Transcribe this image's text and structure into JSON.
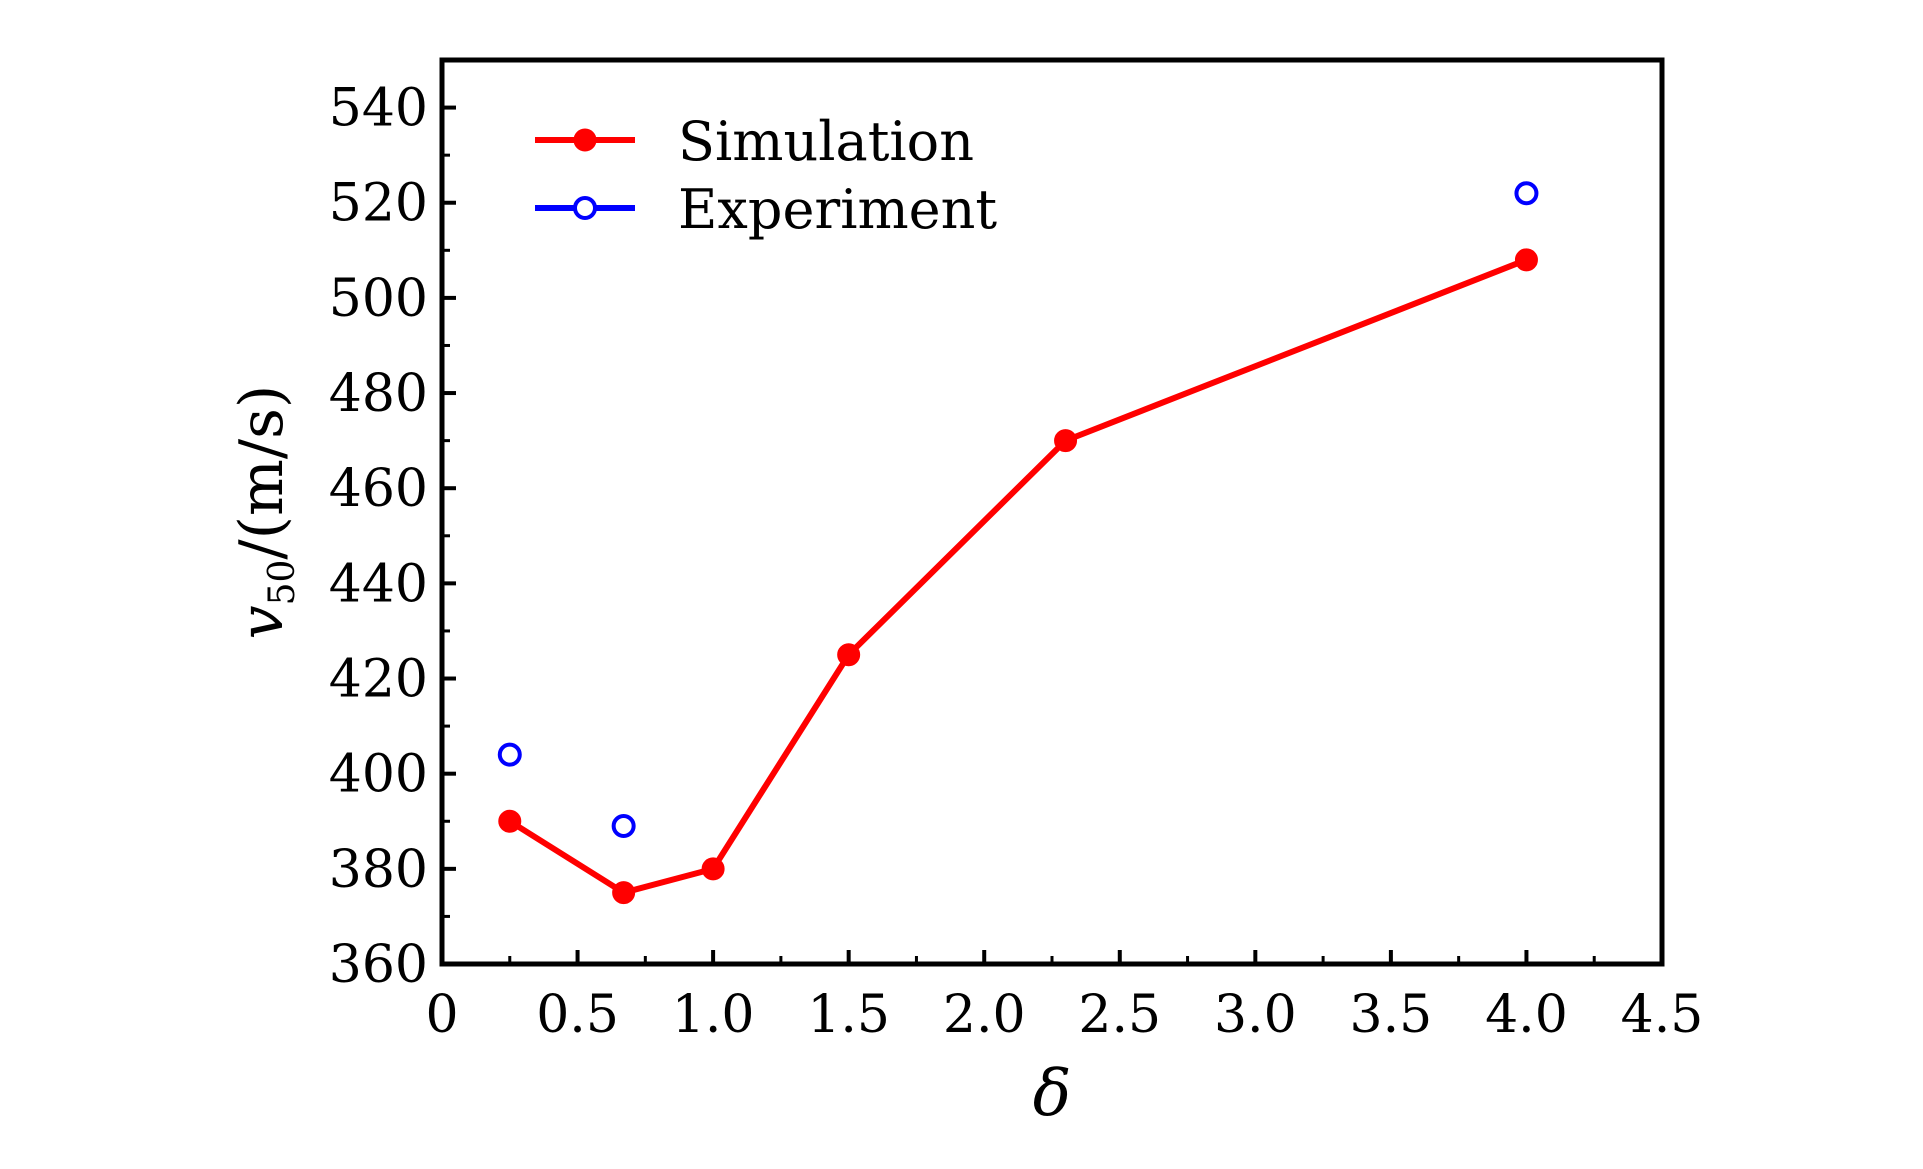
{
  "chart_data": {
    "type": "line",
    "title": "",
    "xlabel": "δ",
    "ylabel": {
      "main": "v",
      "subscript": "50",
      "unit": "/(m/s)"
    },
    "xlim": [
      0,
      4.5
    ],
    "ylim": [
      360,
      550
    ],
    "x_ticks": [
      {
        "value": 0,
        "label": "0"
      },
      {
        "value": 0.5,
        "label": "0.5"
      },
      {
        "value": 1.0,
        "label": "1.0"
      },
      {
        "value": 1.5,
        "label": "1.5"
      },
      {
        "value": 2.0,
        "label": "2.0"
      },
      {
        "value": 2.5,
        "label": "2.5"
      },
      {
        "value": 3.0,
        "label": "3.0"
      },
      {
        "value": 3.5,
        "label": "3.5"
      },
      {
        "value": 4.0,
        "label": "4.0"
      },
      {
        "value": 4.5,
        "label": "4.5"
      }
    ],
    "y_ticks": [
      {
        "value": 360,
        "label": "360"
      },
      {
        "value": 380,
        "label": "380"
      },
      {
        "value": 400,
        "label": "400"
      },
      {
        "value": 420,
        "label": "420"
      },
      {
        "value": 440,
        "label": "440"
      },
      {
        "value": 460,
        "label": "460"
      },
      {
        "value": 480,
        "label": "480"
      },
      {
        "value": 500,
        "label": "500"
      },
      {
        "value": 520,
        "label": "520"
      },
      {
        "value": 540,
        "label": "540"
      }
    ],
    "grid": false,
    "legend_position": "top-left",
    "series": [
      {
        "name": "Simulation",
        "color": "#ff0000",
        "marker": "filled-circle",
        "line": true,
        "x": [
          0.25,
          0.67,
          1.0,
          1.5,
          2.3,
          4.0
        ],
        "y": [
          390,
          375,
          380,
          425,
          470,
          508
        ]
      },
      {
        "name": "Experiment",
        "color": "#0000ff",
        "marker": "open-circle",
        "line": false,
        "x": [
          0.25,
          0.67,
          4.0
        ],
        "y": [
          404,
          389,
          522
        ]
      }
    ]
  }
}
